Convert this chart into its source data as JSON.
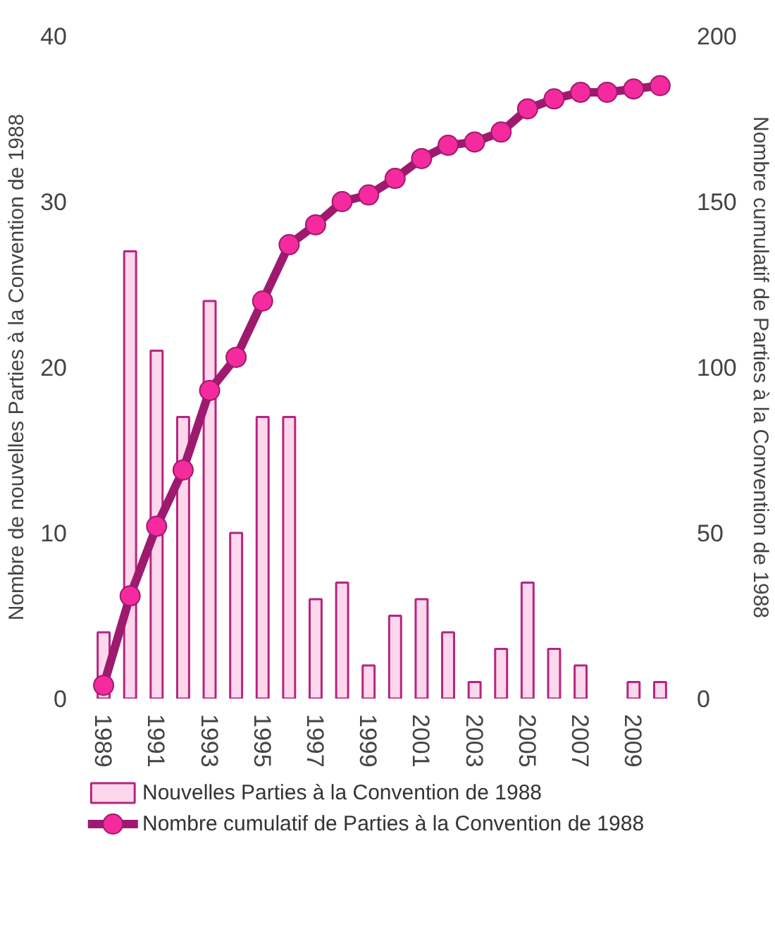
{
  "chart_data": {
    "type": "bar",
    "categories": [
      "1989",
      null,
      "1991",
      null,
      "1993",
      null,
      "1995",
      null,
      "1997",
      null,
      "1999",
      null,
      "2001",
      null,
      "2003",
      null,
      "2005",
      null,
      "2007",
      null,
      "2009",
      null
    ],
    "ylabel": "Nombre de nouvelles Parties à la Convention de 1988",
    "y2label": "Nombre cumulatif de Parties à la Convention de 1988",
    "ylim": [
      0,
      40
    ],
    "yticks": [
      0,
      10,
      20,
      30,
      40
    ],
    "y2lim": [
      0,
      200
    ],
    "y2ticks": [
      0,
      50,
      100,
      150,
      200
    ],
    "grid": false,
    "legend": "bottom",
    "series": [
      {
        "name": "Nouvelles Parties à la Convention de 1988",
        "color": "#fdd7ec",
        "values": [
          4,
          27,
          21,
          17,
          24,
          10,
          17,
          17,
          6,
          7,
          2,
          5,
          6,
          4,
          1,
          3,
          7,
          3,
          2,
          0,
          1,
          1
        ]
      },
      {
        "name": "Nombre cumulatif de Parties à la Convention de 1988",
        "type": "line",
        "axis": "y2",
        "color": "#9e1a6e",
        "marker": "circle",
        "values": [
          4,
          31,
          52,
          69,
          93,
          103,
          120,
          137,
          143,
          150,
          152,
          157,
          163,
          167,
          168,
          171,
          178,
          181,
          183,
          183,
          184,
          185
        ]
      }
    ]
  }
}
